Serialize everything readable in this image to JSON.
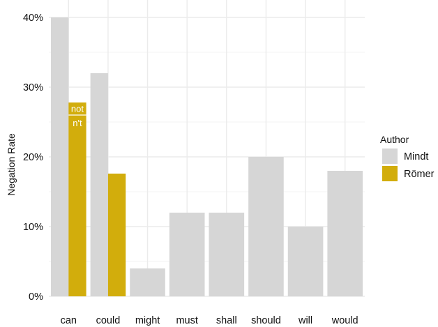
{
  "chart_data": {
    "type": "bar",
    "categories": [
      "can",
      "could",
      "might",
      "must",
      "shall",
      "should",
      "will",
      "would"
    ],
    "series": [
      {
        "name": "Mindt",
        "color": "#d6d6d6",
        "values": [
          40,
          32,
          4,
          12,
          12,
          20,
          10,
          18
        ]
      },
      {
        "name": "Römer",
        "color": "#d2ad0c",
        "values": [
          27.8,
          17.6,
          null,
          null,
          null,
          null,
          null,
          null
        ]
      }
    ],
    "segment_annotations": {
      "category": "can",
      "series": "Römer",
      "divider_value": 26,
      "labels": [
        "not",
        "n't"
      ]
    },
    "ylabel": "Negation Rate",
    "xlabel": "",
    "ylim": [
      0,
      40
    ],
    "yticks": [
      0,
      10,
      20,
      30,
      40
    ],
    "ytick_labels": [
      "0%",
      "10%",
      "20%",
      "30%",
      "40%"
    ],
    "legend": {
      "title": "Author",
      "placement": "right"
    },
    "grid": true
  }
}
